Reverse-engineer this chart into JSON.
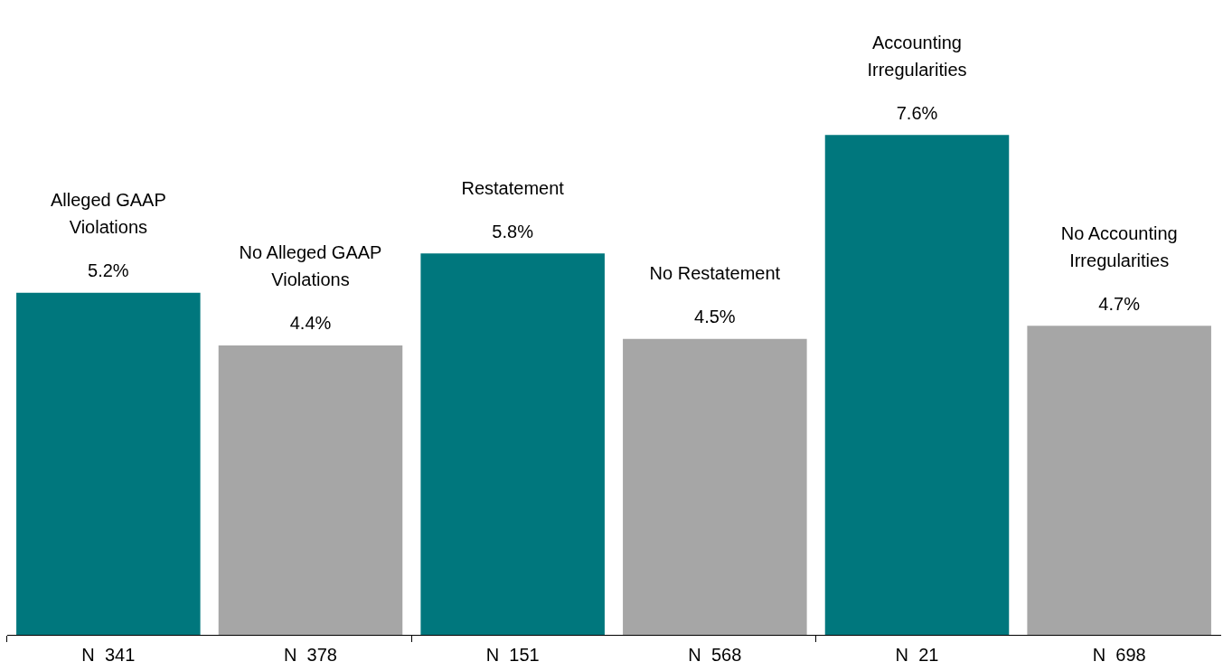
{
  "chart_data": {
    "type": "bar",
    "categories": [
      "N  341",
      "N  378",
      "N  151",
      "N  568",
      "N  21",
      "N  698"
    ],
    "values": [
      5.2,
      4.4,
      5.8,
      4.5,
      7.6,
      4.7
    ],
    "colors": [
      "#00777d",
      "#a6a6a6",
      "#00777d",
      "#a6a6a6",
      "#00777d",
      "#a6a6a6"
    ],
    "value_labels": [
      "5.2%",
      "4.4%",
      "5.8%",
      "4.5%",
      "7.6%",
      "4.7%"
    ],
    "annotations": [
      "Alleged GAAP Violations",
      "No Alleged GAAP Violations",
      "Restatement",
      "No Restatement",
      "Accounting Irregularities",
      "No Accounting Irregularities"
    ]
  }
}
